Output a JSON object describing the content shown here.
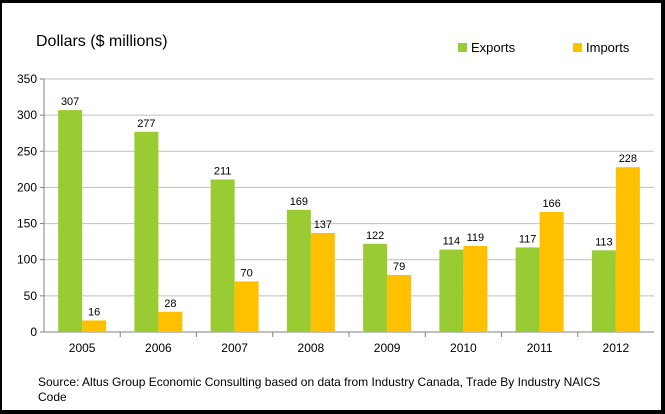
{
  "chart_data": {
    "type": "bar",
    "ylabel": "Dollars ($ millions)",
    "categories": [
      "2005",
      "2006",
      "2007",
      "2008",
      "2009",
      "2010",
      "2011",
      "2012"
    ],
    "series": [
      {
        "name": "Exports",
        "color": "#99cc33",
        "values": [
          307,
          277,
          211,
          169,
          122,
          114,
          117,
          113
        ]
      },
      {
        "name": "Imports",
        "color": "#ffc000",
        "values": [
          16,
          28,
          70,
          137,
          79,
          119,
          166,
          228
        ]
      }
    ],
    "ylim": [
      0,
      350
    ],
    "yticks": [
      "0",
      "50",
      "100",
      "150",
      "200",
      "250",
      "300",
      "350"
    ],
    "grid": true,
    "legend": "top-right",
    "source": "Source: Altus Group Economic Consulting based on data from Industry Canada, Trade By Industry NAICS Code"
  }
}
